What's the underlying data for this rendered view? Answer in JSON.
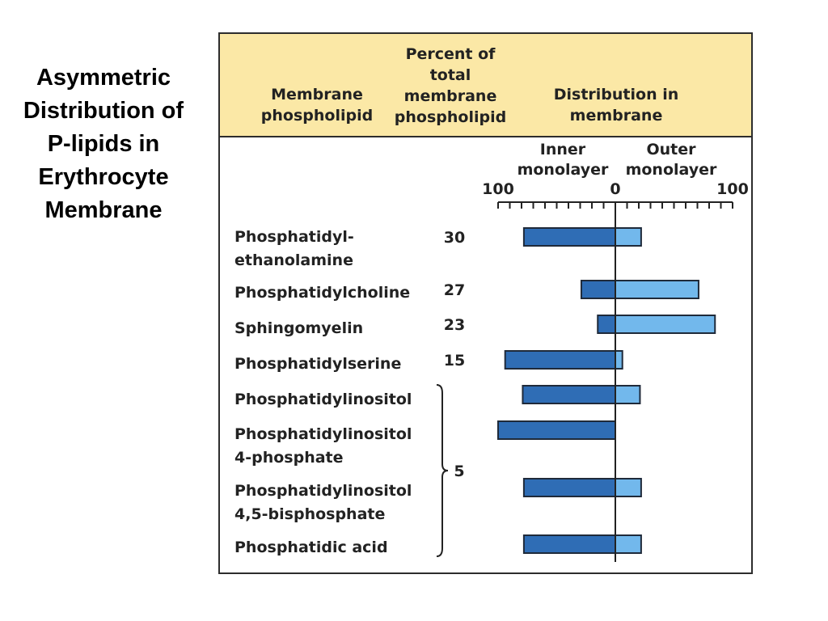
{
  "slide_title": [
    "Asymmetric",
    "Distribution of",
    "P-lipids in",
    "Erythrocyte",
    "Membrane"
  ],
  "header": {
    "col1": [
      "Membrane",
      "phospholipid"
    ],
    "col2": [
      "Percent of",
      "total",
      "membrane",
      "phospholipid"
    ],
    "col3": [
      "Distribution in",
      "membrane"
    ]
  },
  "axis": {
    "inner_label": [
      "Inner",
      "monolayer"
    ],
    "outer_label": [
      "Outer",
      "monolayer"
    ],
    "tick_left": "100",
    "tick_center": "0",
    "tick_right": "100"
  },
  "bracket_value": "5",
  "colors": {
    "inner": "#2f6db5",
    "outer": "#72b8ec",
    "header": "#fbe8a6",
    "stroke": "#1f2a3a"
  },
  "chart_data": {
    "type": "bar",
    "orientation": "horizontal-diverging",
    "xlim": [
      -100,
      100
    ],
    "categories": [
      "Phosphatidylethanolamine",
      "Phosphatidylcholine",
      "Sphingomyelin",
      "Phosphatidylserine",
      "Phosphatidylinositol",
      "Phosphatidylinositol 4-phosphate",
      "Phosphatidylinositol 4,5-bisphosphate",
      "Phosphatidic acid"
    ],
    "labels": [
      [
        "Phosphatidyl-",
        "ethanolamine"
      ],
      [
        "Phosphatidylcholine"
      ],
      [
        "Sphingomyelin"
      ],
      [
        "Phosphatidylserine"
      ],
      [
        "Phosphatidylinositol"
      ],
      [
        "Phosphatidylinositol",
        "4-phosphate"
      ],
      [
        "Phosphatidylinositol",
        "4,5-bisphosphate"
      ],
      [
        "Phosphatidic acid"
      ]
    ],
    "percent_of_total": [
      "30",
      "27",
      "23",
      "15",
      "",
      "",
      "",
      ""
    ],
    "series": [
      {
        "name": "Inner monolayer",
        "values": [
          78,
          29,
          15,
          94,
          79,
          100,
          78,
          78
        ]
      },
      {
        "name": "Outer monolayer",
        "values": [
          22,
          71,
          85,
          6,
          21,
          0,
          22,
          22
        ]
      }
    ]
  }
}
